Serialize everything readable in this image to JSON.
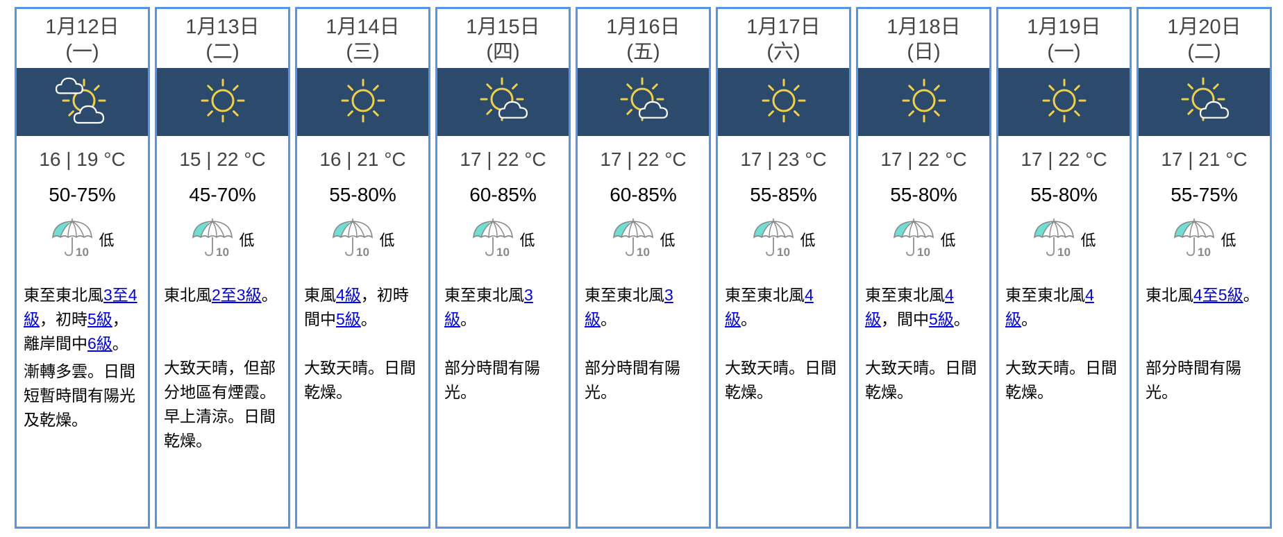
{
  "colors": {
    "border": "#5494ee",
    "band": "#2b4a6c",
    "sun": "#f2d043",
    "cloud": "#ffffff",
    "umbrella_fill": "#6fdfd3",
    "link": "#0000ee"
  },
  "days": [
    {
      "date": "1月12日",
      "weekday": "(一)",
      "icon": "sunny-periods-cloudy-icon",
      "temp": "16 | 19 °C",
      "humidity": "50-75%",
      "psr_icon": "umbrella-10-icon",
      "psr_level": "低",
      "wind": [
        {
          "t": "東至東北風"
        },
        {
          "t": "3至4級",
          "link": true
        },
        {
          "t": "，初時"
        },
        {
          "t": "5級",
          "link": true
        },
        {
          "t": "，離岸間中"
        },
        {
          "t": "6級",
          "link": true
        },
        {
          "t": "。"
        }
      ],
      "desc": "漸轉多雲。日間短暫時間有陽光及乾燥。"
    },
    {
      "date": "1月13日",
      "weekday": "(二)",
      "icon": "sunny-icon",
      "temp": "15 | 22 °C",
      "humidity": "45-70%",
      "psr_icon": "umbrella-10-icon",
      "psr_level": "低",
      "wind": [
        {
          "t": "東北風"
        },
        {
          "t": "2至3級",
          "link": true
        },
        {
          "t": "。"
        }
      ],
      "desc": "大致天晴，但部分地區有煙霞。早上清涼。日間乾燥。"
    },
    {
      "date": "1月14日",
      "weekday": "(三)",
      "icon": "sunny-icon",
      "temp": "16 | 21 °C",
      "humidity": "55-80%",
      "psr_icon": "umbrella-10-icon",
      "psr_level": "低",
      "wind": [
        {
          "t": "東風"
        },
        {
          "t": "4級",
          "link": true
        },
        {
          "t": "，初時間中"
        },
        {
          "t": "5級",
          "link": true
        },
        {
          "t": "。"
        }
      ],
      "desc": "大致天晴。日間乾燥。"
    },
    {
      "date": "1月15日",
      "weekday": "(四)",
      "icon": "sunny-intervals-icon",
      "temp": "17 | 22 °C",
      "humidity": "60-85%",
      "psr_icon": "umbrella-10-icon",
      "psr_level": "低",
      "wind": [
        {
          "t": "東至東北風"
        },
        {
          "t": "3級",
          "link": true
        },
        {
          "t": "。"
        }
      ],
      "desc": "部分時間有陽光。"
    },
    {
      "date": "1月16日",
      "weekday": "(五)",
      "icon": "sunny-intervals-icon",
      "temp": "17 | 22 °C",
      "humidity": "60-85%",
      "psr_icon": "umbrella-10-icon",
      "psr_level": "低",
      "wind": [
        {
          "t": "東至東北風"
        },
        {
          "t": "3級",
          "link": true
        },
        {
          "t": "。"
        }
      ],
      "desc": "部分時間有陽光。"
    },
    {
      "date": "1月17日",
      "weekday": "(六)",
      "icon": "sunny-icon",
      "temp": "17 | 23 °C",
      "humidity": "55-85%",
      "psr_icon": "umbrella-10-icon",
      "psr_level": "低",
      "wind": [
        {
          "t": "東至東北風"
        },
        {
          "t": "4級",
          "link": true
        },
        {
          "t": "。"
        }
      ],
      "desc": "大致天晴。日間乾燥。"
    },
    {
      "date": "1月18日",
      "weekday": "(日)",
      "icon": "sunny-icon",
      "temp": "17 | 22 °C",
      "humidity": "55-80%",
      "psr_icon": "umbrella-10-icon",
      "psr_level": "低",
      "wind": [
        {
          "t": "東至東北風"
        },
        {
          "t": "4級",
          "link": true
        },
        {
          "t": "，間中"
        },
        {
          "t": "5級",
          "link": true
        },
        {
          "t": "。"
        }
      ],
      "desc": "大致天晴。日間乾燥。"
    },
    {
      "date": "1月19日",
      "weekday": "(一)",
      "icon": "sunny-icon",
      "temp": "17 | 22 °C",
      "humidity": "55-80%",
      "psr_icon": "umbrella-10-icon",
      "psr_level": "低",
      "wind": [
        {
          "t": "東至東北風"
        },
        {
          "t": "4級",
          "link": true
        },
        {
          "t": "。"
        }
      ],
      "desc": "大致天晴。日間乾燥。"
    },
    {
      "date": "1月20日",
      "weekday": "(二)",
      "icon": "sunny-intervals-icon",
      "temp": "17 | 21 °C",
      "humidity": "55-75%",
      "psr_icon": "umbrella-10-icon",
      "psr_level": "低",
      "wind": [
        {
          "t": "東北風"
        },
        {
          "t": "4至5級",
          "link": true
        },
        {
          "t": "。"
        }
      ],
      "desc": "部分時間有陽光。"
    }
  ]
}
